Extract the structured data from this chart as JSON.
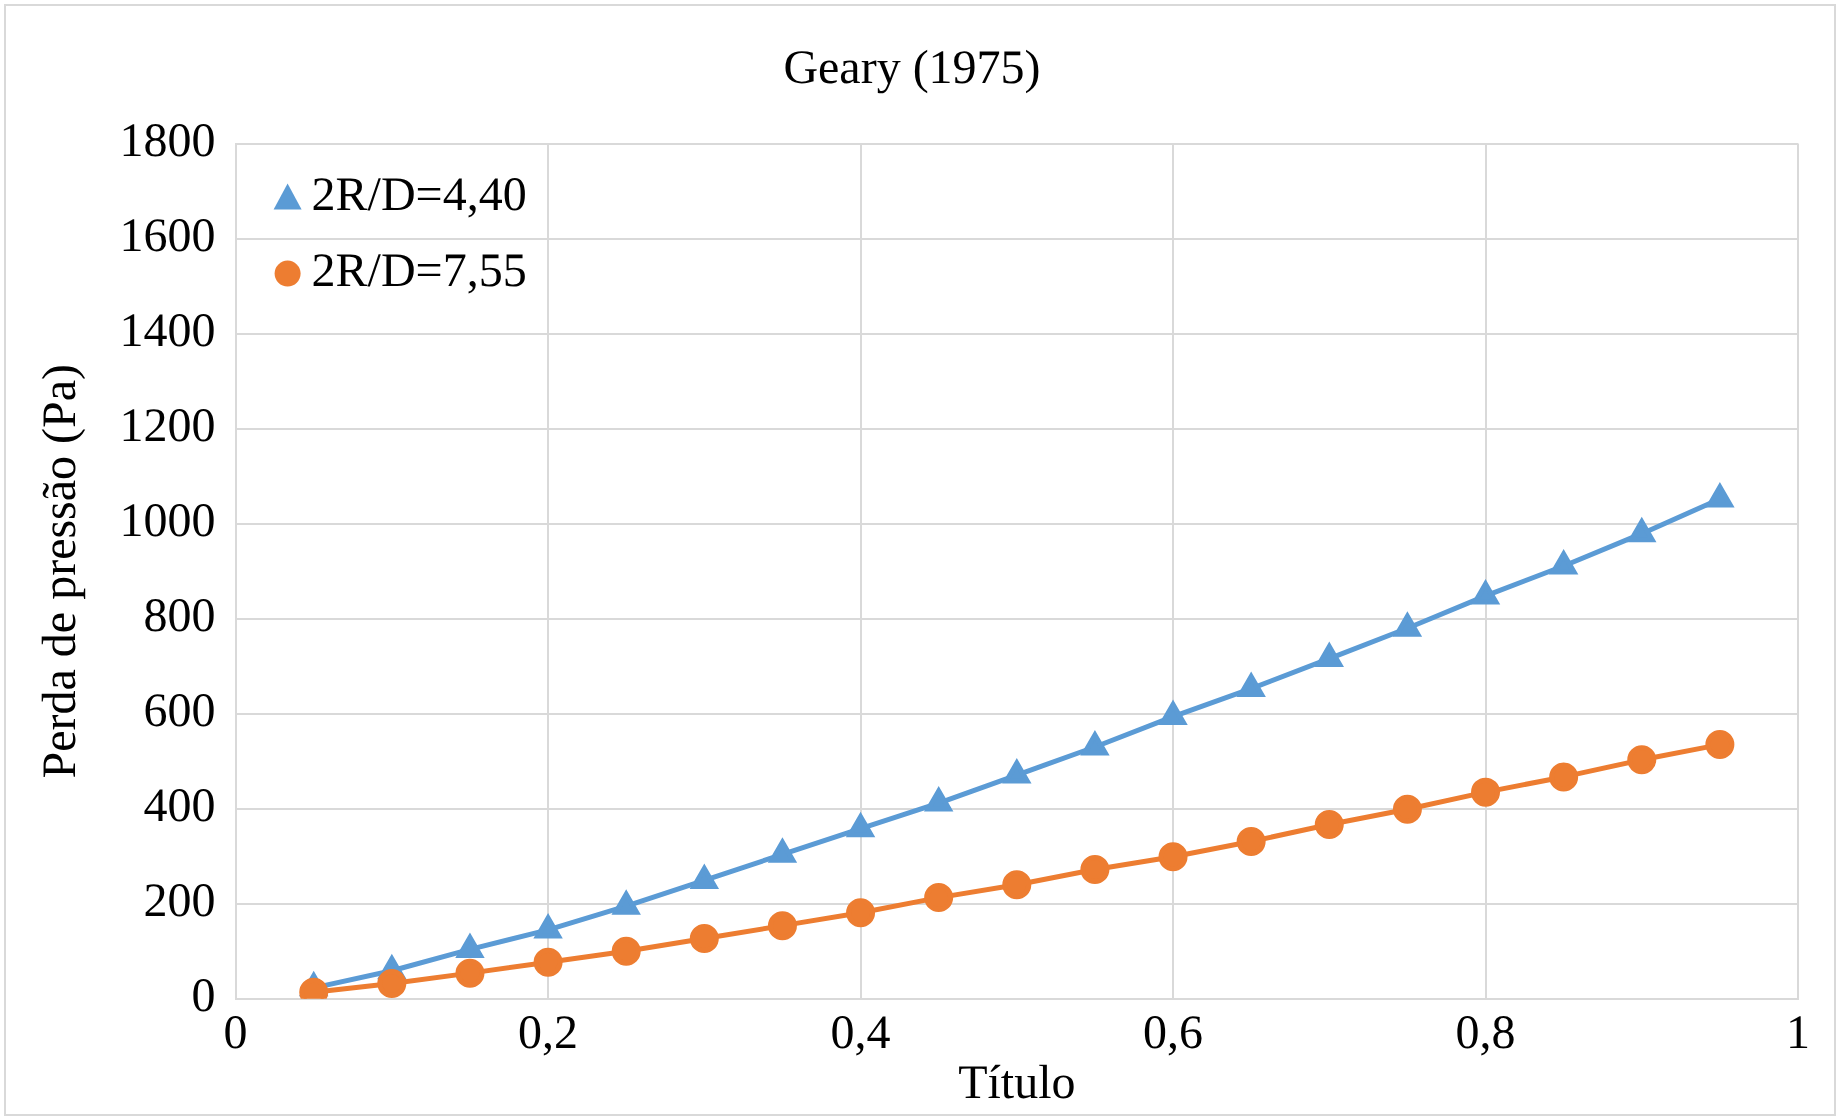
{
  "chart_data": {
    "type": "line",
    "title": "Geary (1975)",
    "xlabel": "Título",
    "ylabel": "Perda de pressão (Pa)",
    "x": [
      0.05,
      0.1,
      0.15,
      0.2,
      0.25,
      0.3,
      0.35,
      0.4,
      0.45,
      0.5,
      0.55,
      0.6,
      0.65,
      0.7,
      0.75,
      0.8,
      0.85,
      0.9,
      0.95
    ],
    "series": [
      {
        "name": "2R/D=4,40",
        "color": "#5b9bd5",
        "marker": "triangle",
        "values": [
          23,
          59,
          104,
          145,
          195,
          249,
          304,
          358,
          412,
          471,
          530,
          594,
          653,
          716,
          780,
          848,
          911,
          979,
          1052
        ]
      },
      {
        "name": "2R/D=7,55",
        "color": "#ed7d31",
        "marker": "circle",
        "values": [
          14,
          32,
          54,
          77,
          100,
          127,
          154,
          181,
          213,
          240,
          272,
          299,
          331,
          367,
          399,
          435,
          467,
          503,
          535
        ]
      }
    ],
    "xlim": [
      0,
      1
    ],
    "xticks": [
      0,
      {
        "value": 0.2,
        "label": "0,2"
      },
      {
        "value": 0.4,
        "label": "0,4"
      },
      {
        "value": 0.6,
        "label": "0,6"
      },
      {
        "value": 0.8,
        "label": "0,8"
      },
      1
    ],
    "ylim": [
      0,
      1800
    ],
    "yticks": [
      0,
      200,
      400,
      600,
      800,
      1000,
      1200,
      1400,
      1600,
      1800
    ],
    "grid": true,
    "legend": "top left",
    "line_style": "solid"
  }
}
